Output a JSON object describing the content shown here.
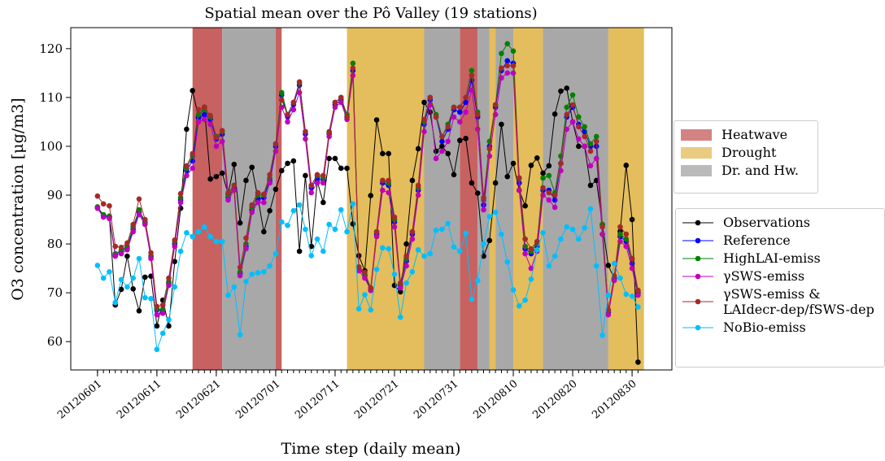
{
  "chart_data": {
    "type": "line",
    "title": "Spatial mean over the Pô Valley (19 stations)",
    "x_label": "Time step (daily mean)",
    "y_label": "O3 concentration [μg/m3]",
    "xlim": [
      -4.5,
      96.7
    ],
    "ylim": [
      54.2,
      124.3
    ],
    "yticks": [
      60,
      70,
      80,
      90,
      100,
      110,
      120
    ],
    "xticks": [
      {
        "value": 0,
        "label": "20120601"
      },
      {
        "value": 10,
        "label": "20120611"
      },
      {
        "value": 20,
        "label": "20120621"
      },
      {
        "value": 30,
        "label": "20120701"
      },
      {
        "value": 40,
        "label": "20120711"
      },
      {
        "value": 50,
        "label": "20120721"
      },
      {
        "value": 60,
        "label": "20120731"
      },
      {
        "value": 70,
        "label": "20120810"
      },
      {
        "value": 80,
        "label": "20120820"
      },
      {
        "value": 90,
        "label": "20120830"
      }
    ],
    "regions": [
      {
        "name": "Heatwave",
        "color": "#c45a58",
        "spans": [
          [
            16,
            21
          ],
          [
            30,
            31
          ],
          [
            61,
            64
          ]
        ]
      },
      {
        "name": "Drought",
        "color": "#e3b954",
        "spans": [
          [
            42,
            55
          ],
          [
            66,
            67
          ],
          [
            70,
            75
          ],
          [
            86,
            92
          ]
        ]
      },
      {
        "name": "Dr. and Hw.",
        "color": "#a3a3a3",
        "spans": [
          [
            21,
            30
          ],
          [
            55,
            61
          ],
          [
            64,
            66
          ],
          [
            67,
            70
          ],
          [
            75,
            86
          ]
        ]
      }
    ],
    "x": [
      0,
      1,
      2,
      3,
      4,
      5,
      6,
      7,
      8,
      9,
      10,
      11,
      12,
      13,
      14,
      15,
      16,
      17,
      18,
      19,
      20,
      21,
      22,
      23,
      24,
      25,
      26,
      27,
      28,
      29,
      30,
      31,
      32,
      33,
      34,
      35,
      36,
      37,
      38,
      39,
      40,
      41,
      42,
      43,
      44,
      45,
      46,
      47,
      48,
      49,
      50,
      51,
      52,
      53,
      54,
      55,
      56,
      57,
      58,
      59,
      60,
      61,
      62,
      63,
      64,
      65,
      66,
      67,
      68,
      69,
      70,
      71,
      72,
      73,
      74,
      75,
      76,
      77,
      78,
      79,
      80,
      81,
      82,
      83,
      84,
      85,
      86,
      87,
      88,
      89,
      90,
      91
    ],
    "series": [
      {
        "name": "Observations",
        "color": "#000000",
        "values": [
          87.5,
          85.8,
          85.5,
          67.5,
          70.7,
          77.5,
          70.8,
          66.3,
          73.2,
          73.4,
          63.2,
          68.5,
          63.2,
          76.4,
          87.3,
          103.5,
          111.4,
          106,
          108,
          93.3,
          93.8,
          94.5,
          90.2,
          96.3,
          84.3,
          93,
          95.7,
          89.4,
          82.5,
          86.8,
          91.2,
          95,
          96.5,
          97,
          78.5,
          94,
          79.5,
          92.8,
          88.5,
          97.5,
          97.5,
          95.5,
          95.5,
          84.1,
          77.6,
          74.5,
          89.9,
          105.4,
          98.5,
          98.5,
          71.5,
          70.2,
          80,
          93,
          99.5,
          109,
          107,
          99,
          100,
          98.5,
          94.2,
          101.2,
          101.6,
          92.5,
          90.4,
          77.5,
          80.7,
          92.5,
          104.5,
          93.8,
          96.5,
          91,
          87.8,
          96.1,
          97.6,
          94.5,
          96,
          106.6,
          111.3,
          111.9,
          105,
          100,
          100,
          92,
          93,
          84,
          75.6,
          72.9,
          82.6,
          96.1,
          85,
          55.8
        ]
      },
      {
        "name": "Reference",
        "color": "#0000ff",
        "values": [
          87.5,
          85.8,
          85.5,
          77.8,
          78.5,
          79.2,
          83,
          86.5,
          84.3,
          77.4,
          66.5,
          66.4,
          72,
          80,
          89,
          95,
          97,
          105.8,
          106.5,
          105.5,
          101.5,
          102.5,
          89.5,
          91.5,
          74,
          79.5,
          87,
          89,
          89.5,
          93,
          100,
          110.5,
          106,
          108.5,
          112.5,
          102.5,
          91.5,
          93.5,
          93,
          102.5,
          108.5,
          109.5,
          106,
          115.5,
          75,
          73.5,
          70.5,
          82,
          92.5,
          92,
          84.5,
          71.5,
          76.5,
          82,
          91,
          104.5,
          109.5,
          106,
          101,
          103.5,
          107.5,
          107,
          109,
          113.5,
          106,
          88,
          100,
          108,
          115.5,
          117.5,
          117,
          92.5,
          79,
          78,
          79.5,
          91,
          91,
          89,
          96.5,
          106,
          108,
          104.5,
          103,
          100,
          100,
          82,
          66,
          73,
          81.5,
          80.5,
          76,
          70
        ]
      },
      {
        "name": "HighLAI-emiss",
        "color": "#008000",
        "values": [
          87.6,
          86,
          85.7,
          78,
          78.7,
          79.5,
          83.5,
          87,
          84.6,
          77.6,
          66.7,
          66.6,
          72.3,
          80.5,
          89.5,
          95.5,
          98,
          106.5,
          107.5,
          106,
          102,
          103,
          90,
          92,
          74.3,
          80,
          87.5,
          90,
          90,
          93.5,
          100.5,
          111,
          106.5,
          109,
          113,
          103,
          92,
          94,
          93.5,
          103,
          109,
          110,
          106.5,
          117,
          75.3,
          73.8,
          70.8,
          82.5,
          93,
          92.5,
          85,
          71.8,
          77,
          82.5,
          91.5,
          105,
          110,
          106.5,
          102,
          104.5,
          108,
          108,
          110,
          115.5,
          107,
          89,
          101,
          108.5,
          119,
          121,
          119.5,
          93.5,
          79.5,
          78.5,
          80,
          93.5,
          94,
          90.5,
          98,
          108,
          110.5,
          106,
          104,
          100.5,
          102,
          84,
          66.3,
          73.3,
          82,
          81,
          77,
          70.3
        ]
      },
      {
        "name": "γSWS-emiss",
        "color": "#c000c0",
        "values": [
          87.3,
          85.5,
          85.2,
          77.5,
          78,
          78.8,
          82.5,
          86,
          84,
          77,
          65.5,
          65.8,
          71.5,
          79.5,
          88.5,
          94,
          95.5,
          105,
          105.5,
          104.5,
          100,
          101,
          89,
          91,
          73.5,
          79,
          86.5,
          88.5,
          88.5,
          92.5,
          99,
          108,
          105,
          107.5,
          111,
          101.5,
          90.5,
          92.5,
          92.5,
          102,
          108,
          109,
          105.5,
          114.5,
          74.5,
          73,
          70.5,
          81.5,
          91,
          90.5,
          83.5,
          71,
          75.5,
          81,
          90,
          103,
          108.5,
          97.5,
          99,
          101,
          106,
          105,
          107,
          111.5,
          103.5,
          87,
          98,
          106.5,
          114,
          115,
          115,
          91,
          78,
          75,
          78.5,
          90,
          89,
          87.5,
          95,
          103.5,
          105,
          101.5,
          100,
          96,
          97.5,
          82,
          65.5,
          72.5,
          80.5,
          79.5,
          75,
          69.5
        ]
      },
      {
        "name": "γSWS-emiss & LAIdecr-dep/fSWS-dep",
        "color": "#a52a2a",
        "values": [
          89.8,
          88.2,
          87.8,
          79.5,
          79.3,
          80.2,
          84,
          89.2,
          85,
          78.2,
          67.2,
          67.5,
          73,
          80.8,
          90.3,
          96,
          98.5,
          107.5,
          108,
          106.3,
          101.8,
          103.2,
          90.5,
          92,
          75.2,
          81.2,
          88,
          90.5,
          90.2,
          94.2,
          100.5,
          109.5,
          106.5,
          109,
          113.2,
          103,
          92,
          94.2,
          94,
          102.8,
          109,
          110,
          106,
          116,
          75.2,
          74.2,
          71,
          82.5,
          93,
          93,
          85.5,
          72,
          77.5,
          82.5,
          92,
          105.5,
          110,
          106,
          102,
          104,
          108,
          108,
          110,
          114.5,
          106.5,
          89.5,
          99.5,
          108.5,
          116,
          116.5,
          116.5,
          93.5,
          81,
          79,
          80.5,
          91.5,
          90.5,
          90,
          96.5,
          106.5,
          108.5,
          104,
          102,
          99,
          101,
          83.5,
          66.5,
          73.5,
          83.5,
          82,
          77,
          70.5
        ]
      },
      {
        "name": "NoBio-emiss",
        "color": "#00bfff",
        "values": [
          75.6,
          73,
          74.3,
          68,
          72.7,
          71.2,
          73,
          77,
          69,
          68.8,
          58.4,
          61.7,
          64.5,
          71.2,
          78.5,
          82.3,
          81.5,
          82.5,
          83.5,
          81.5,
          80.5,
          80.5,
          69.5,
          71.2,
          61.4,
          72.3,
          73.8,
          74.1,
          74.3,
          75.5,
          78,
          84.5,
          83.8,
          86.8,
          88,
          83,
          77.6,
          81,
          78.5,
          84,
          83,
          87,
          82.5,
          88.2,
          66.7,
          69.6,
          66.5,
          74.8,
          79.2,
          79,
          73.8,
          65,
          72,
          74.3,
          78.8,
          77.5,
          78,
          82.8,
          83,
          84.2,
          79.4,
          78.5,
          82.2,
          68.7,
          72.5,
          80,
          85.6,
          86.5,
          82,
          76.3,
          70.6,
          67.3,
          68.5,
          72.8,
          78.8,
          82.3,
          75.5,
          77.5,
          81,
          83.5,
          83,
          81,
          83.3,
          87.2,
          75.5,
          61.3,
          69.5,
          76,
          73,
          69.7,
          69.3,
          67.1
        ]
      }
    ]
  }
}
